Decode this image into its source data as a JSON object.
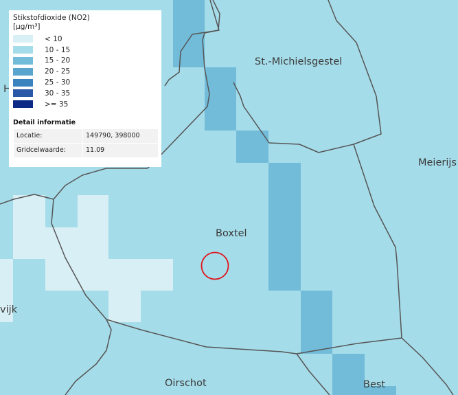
{
  "map": {
    "palette": {
      "background": "#a5dce9",
      "lt10": "#d9eff6",
      "c10_15": "#a5dce9",
      "c15_20": "#72bcd9",
      "c20_25": "#5aa5ce",
      "boundary": "#555555",
      "marker": "#e0141b"
    },
    "places": [
      "St.-Michielsgestel",
      "Meierijs",
      "Boxtel",
      "vijk",
      "Oirschot",
      "Best",
      "H"
    ]
  },
  "legend": {
    "title_line1": "Stikstofdioxide (NO2)",
    "title_line2": "[µg/m³]",
    "classes": [
      {
        "label": "< 10",
        "color": "#d9eff6"
      },
      {
        "label": "10 - 15",
        "color": "#a5dce9"
      },
      {
        "label": "15 - 20",
        "color": "#72bcd9"
      },
      {
        "label": "20 - 25",
        "color": "#5aa5ce"
      },
      {
        "label": "25 - 30",
        "color": "#3a83be"
      },
      {
        "label": "30 - 35",
        "color": "#2a58a8"
      },
      {
        "label": ">= 35",
        "color": "#0c2a85"
      }
    ]
  },
  "detail": {
    "heading": "Detail informatie",
    "location_label": "Locatie:",
    "location_value": "149790, 398000",
    "cell_label": "Gridcelwaarde:",
    "cell_value": "11.09"
  }
}
